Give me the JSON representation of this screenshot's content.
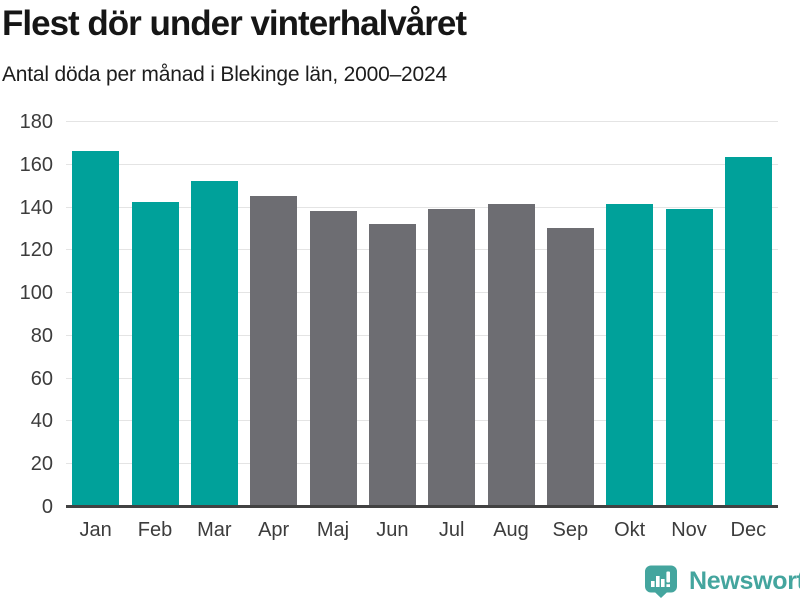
{
  "header": {
    "title": "Flest dör under vinterhalvåret",
    "subtitle": "Antal döda per månad i Blekinge län, 2000–2024"
  },
  "chart_data": {
    "type": "bar",
    "title": "Flest dör under vinterhalvåret",
    "subtitle": "Antal döda per månad i Blekinge län, 2000–2024",
    "categories": [
      "Jan",
      "Feb",
      "Mar",
      "Apr",
      "Maj",
      "Jun",
      "Jul",
      "Aug",
      "Sep",
      "Okt",
      "Nov",
      "Dec"
    ],
    "values": [
      166,
      142,
      152,
      145,
      138,
      132,
      139,
      141,
      130,
      141,
      139,
      163
    ],
    "highlighted": [
      true,
      true,
      true,
      false,
      false,
      false,
      false,
      false,
      false,
      true,
      true,
      true
    ],
    "colors": {
      "highlight": "#00a19a",
      "muted": "#6d6d72",
      "gridline": "#e4e4e4",
      "axis_line": "#424242",
      "tick_text": "#3c3c3c"
    },
    "xlabel": "",
    "ylabel": "",
    "ylim": [
      0,
      180
    ],
    "yticks": [
      0,
      20,
      40,
      60,
      80,
      100,
      120,
      140,
      160,
      180
    ],
    "grid": true,
    "legend": "none"
  },
  "branding": {
    "logo_text": "Newsworthy",
    "logo_color": "#44a59e"
  }
}
